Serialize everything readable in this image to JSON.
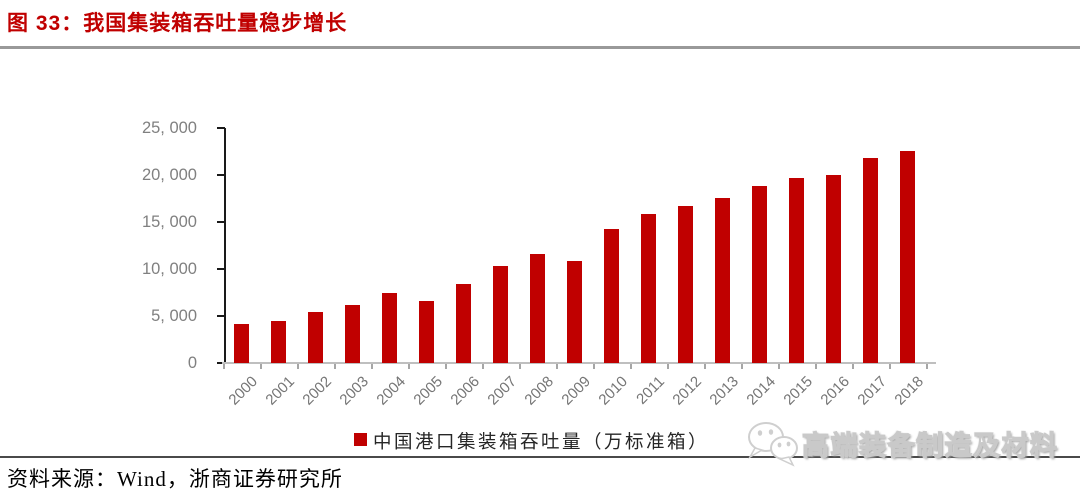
{
  "header": {
    "title": "图 33：我国集装箱吞吐量稳步增长"
  },
  "chart_data": {
    "type": "bar",
    "title": "",
    "categories": [
      "2000",
      "2001",
      "2002",
      "2003",
      "2004",
      "2005",
      "2006",
      "2007",
      "2008",
      "2009",
      "2010",
      "2011",
      "2012",
      "2013",
      "2014",
      "2015",
      "2016",
      "2017",
      "2018"
    ],
    "values": [
      4100,
      4500,
      5400,
      6200,
      7400,
      6600,
      8400,
      10300,
      11600,
      10900,
      14300,
      15800,
      16700,
      17600,
      18800,
      19700,
      20000,
      21800,
      22600
    ],
    "series_name": "中国港口集装箱吞吐量（万标准箱）",
    "xlabel": "",
    "ylabel": "",
    "ylim": [
      0,
      25000
    ],
    "ytick_interval": 5000,
    "ytick_labels": [
      "25, 000",
      "20, 000",
      "15, 000",
      "10, 000",
      "5, 000",
      "0"
    ],
    "bar_color": "#C00000",
    "grid": "off",
    "legend_position": "bottom"
  },
  "legend": {
    "label": "中国港口集装箱吞吐量（万标准箱）",
    "marker_color": "#C00000"
  },
  "watermark": {
    "icon": "wechat-icon",
    "text": "高端装备制造及材料"
  },
  "footer": {
    "source": "资料来源：Wind，浙商证券研究所"
  },
  "colors": {
    "accent_red": "#C00000",
    "title_red": "#C00000",
    "axis_black": "#1a1a1a",
    "axis_gray": "#bfbfbf",
    "label_gray": "#808080",
    "year_gray": "#757575"
  }
}
